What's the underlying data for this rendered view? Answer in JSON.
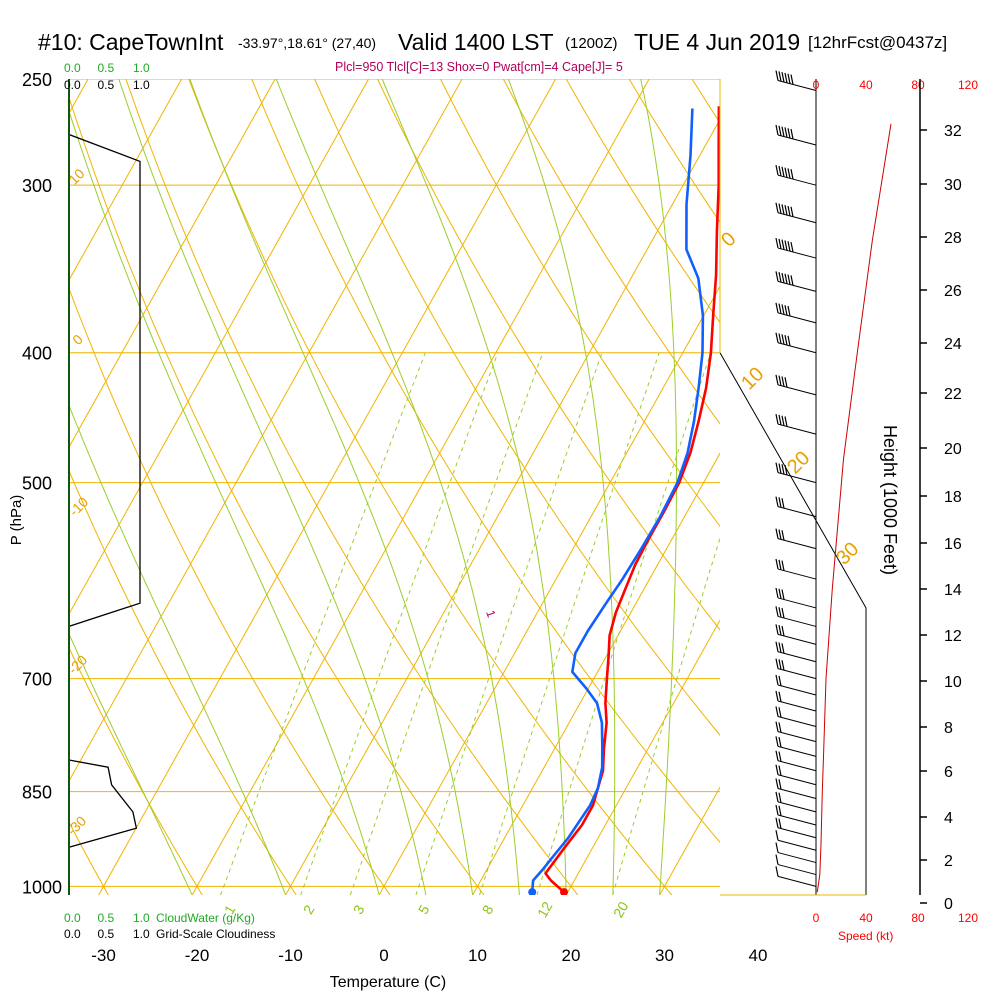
{
  "header": {
    "station": "#10: CapeTownInt",
    "coords": "-33.97°,18.61° (27,40)",
    "valid": "Valid 1400 LST",
    "zulu": "(1200Z)",
    "date": "TUE 4 Jun 2019",
    "fcst": "[12hrFcst@0437z]",
    "indices": "Plcl=950 Tlcl[C]=13 Shox=0 Pwat[cm]=4 Cape[J]= 5"
  },
  "chart_data": {
    "type": "line",
    "title": "Skew-T log-P sounding",
    "xlabel": "Temperature (C)",
    "ylabel": "P (hPa)",
    "x_ticks": [
      "-30",
      "-20",
      "-10",
      "0",
      "10",
      "20",
      "30",
      "40"
    ],
    "x_tick_values": [
      -30,
      -20,
      -10,
      0,
      10,
      20,
      30,
      40
    ],
    "p_ticks": [
      "250",
      "300",
      "400",
      "500",
      "700",
      "850",
      "1000"
    ],
    "p_tick_values": [
      250,
      300,
      400,
      500,
      700,
      850,
      1000
    ],
    "x_range": [
      -35,
      36
    ],
    "p_range": [
      250,
      1015
    ],
    "series": [
      {
        "name": "Temperature",
        "color": "#ff0000",
        "points": [
          [
            19.6,
            1010
          ],
          [
            17.5,
            990
          ],
          [
            16.5,
            978
          ],
          [
            17.0,
            935
          ],
          [
            17.5,
            900
          ],
          [
            17.5,
            870
          ],
          [
            17.0,
            845
          ],
          [
            16.5,
            820
          ],
          [
            15.3,
            790
          ],
          [
            14.0,
            755
          ],
          [
            12.7,
            730
          ],
          [
            11.4,
            700
          ],
          [
            10.3,
            675
          ],
          [
            9.1,
            650
          ],
          [
            8.4,
            625
          ],
          [
            8.0,
            600
          ],
          [
            7.6,
            575
          ],
          [
            7.5,
            550
          ],
          [
            7.5,
            525
          ],
          [
            7.4,
            500
          ],
          [
            6.8,
            475
          ],
          [
            5.8,
            450
          ],
          [
            4.6,
            425
          ],
          [
            3.0,
            400
          ],
          [
            1.0,
            375
          ],
          [
            -1.1,
            350
          ],
          [
            -3.6,
            325
          ],
          [
            -6.2,
            300
          ],
          [
            -8.6,
            280
          ],
          [
            -10.9,
            262
          ]
        ]
      },
      {
        "name": "Dewpoint",
        "color": "#1060ff",
        "points": [
          [
            16.2,
            1010
          ],
          [
            15.6,
            990
          ],
          [
            16.0,
            970
          ],
          [
            16.3,
            950
          ],
          [
            16.8,
            920
          ],
          [
            17.0,
            895
          ],
          [
            17.2,
            870
          ],
          [
            17.0,
            845
          ],
          [
            16.2,
            815
          ],
          [
            14.9,
            785
          ],
          [
            13.5,
            755
          ],
          [
            11.8,
            730
          ],
          [
            9.8,
            712
          ],
          [
            7.3,
            692
          ],
          [
            6.5,
            670
          ],
          [
            6.5,
            645
          ],
          [
            6.8,
            615
          ],
          [
            7.1,
            590
          ],
          [
            7.3,
            560
          ],
          [
            7.4,
            530
          ],
          [
            7.2,
            500
          ],
          [
            6.5,
            475
          ],
          [
            5.3,
            450
          ],
          [
            3.8,
            425
          ],
          [
            2.1,
            400
          ],
          [
            -0.1,
            375
          ],
          [
            -2.8,
            352
          ],
          [
            -5.8,
            335
          ],
          [
            -8.5,
            310
          ],
          [
            -11.0,
            285
          ],
          [
            -13.6,
            263
          ]
        ]
      }
    ],
    "surface_points": [
      {
        "name": "T",
        "t": 19.6,
        "p": 1010
      },
      {
        "name": "Td",
        "t": 16.2,
        "p": 1010
      }
    ],
    "isotherm_labels": [
      "10",
      "0",
      "-10",
      "-20",
      "-30",
      "0",
      "10",
      "20",
      "30"
    ],
    "mixing_ratio_labels": [
      "1",
      "2",
      "3",
      "5",
      "8",
      "12",
      "20"
    ],
    "dry_adiabat_labels": [
      "0",
      "10",
      "20",
      "30"
    ]
  },
  "cloud_panel": {
    "cloudwater_ticks": [
      "0.0",
      "0.5",
      "1.0"
    ],
    "cloudiness_ticks": [
      "0.0",
      "0.5",
      "1.0"
    ],
    "cloudwater_label": "CloudWater (g/Kg)",
    "cloudiness_label": "Grid-Scale Cloudiness",
    "cloudiness_profile": [
      [
        0,
        250
      ],
      [
        0,
        275
      ],
      [
        1.0,
        288
      ],
      [
        1.0,
        615
      ],
      [
        0,
        640
      ],
      [
        0,
        805
      ],
      [
        0.55,
        815
      ],
      [
        0.6,
        840
      ],
      [
        0.9,
        880
      ],
      [
        0.95,
        905
      ],
      [
        0,
        935
      ],
      [
        0,
        1015
      ]
    ]
  },
  "wind_panel": {
    "speed_ticks": [
      "0",
      "40",
      "80",
      "120"
    ],
    "speed_label": "Speed (kt)",
    "speed_profile": [
      [
        60,
        270
      ],
      [
        45,
        330
      ],
      [
        33,
        400
      ],
      [
        22,
        480
      ],
      [
        13,
        600
      ],
      [
        8,
        700
      ],
      [
        6,
        800
      ],
      [
        5,
        850
      ],
      [
        4,
        930
      ],
      [
        3,
        980
      ],
      [
        1,
        1010
      ]
    ],
    "height_label": "Height (1000 Feet)",
    "height_ticks": [
      "0",
      "2",
      "4",
      "6",
      "8",
      "10",
      "12",
      "14",
      "16",
      "18",
      "20",
      "22",
      "24",
      "26",
      "28",
      "30",
      "32"
    ],
    "barb_pressures": [
      255,
      280,
      300,
      320,
      340,
      360,
      380,
      400,
      430,
      460,
      500,
      530,
      560,
      590,
      620,
      640,
      660,
      680,
      700,
      720,
      740,
      760,
      780,
      800,
      820,
      840,
      860,
      880,
      900,
      920,
      940,
      960,
      980,
      1000
    ],
    "barb_speeds": [
      55,
      60,
      60,
      60,
      60,
      55,
      50,
      45,
      40,
      40,
      35,
      30,
      30,
      30,
      30,
      25,
      25,
      25,
      25,
      20,
      20,
      20,
      20,
      20,
      15,
      15,
      15,
      15,
      15,
      15,
      10,
      10,
      10,
      10
    ]
  }
}
